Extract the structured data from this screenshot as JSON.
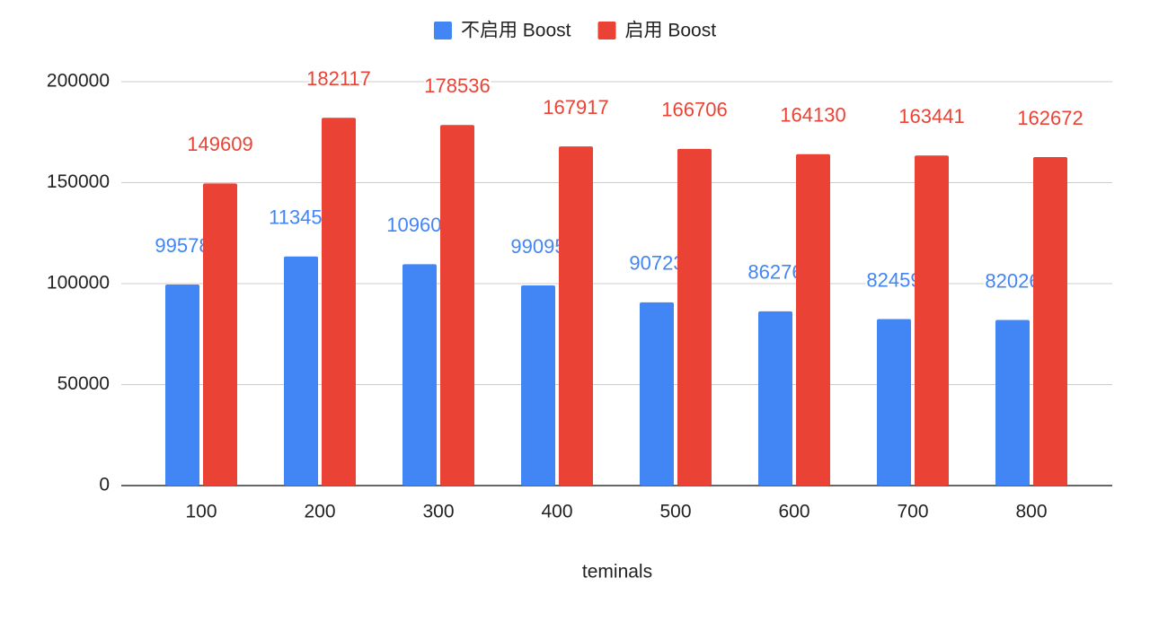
{
  "chart_data": {
    "type": "bar",
    "categories": [
      "100",
      "200",
      "300",
      "400",
      "500",
      "600",
      "700",
      "800"
    ],
    "series": [
      {
        "name": "不启用 Boost",
        "color": "#4285f4",
        "values": [
          99578,
          113455,
          109600,
          99095,
          90723,
          86276,
          82459,
          82026
        ]
      },
      {
        "name": "启用 Boost",
        "color": "#ea4335",
        "values": [
          149609,
          182117,
          178536,
          167917,
          166706,
          164130,
          163441,
          162672
        ]
      }
    ],
    "x_label": "teminals",
    "ylim": [
      0,
      200000
    ],
    "yticks": [
      0,
      50000,
      100000,
      150000,
      200000
    ],
    "grid": true,
    "legend": "top"
  }
}
